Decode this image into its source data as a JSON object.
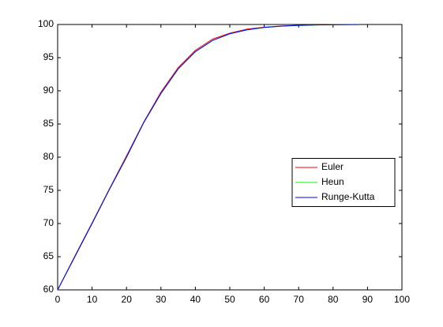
{
  "chart_data": {
    "type": "line",
    "x": [
      0,
      5,
      10,
      15,
      20,
      25,
      30,
      35,
      40,
      45,
      50,
      55,
      60,
      65,
      70,
      75,
      80,
      85,
      87.5
    ],
    "series": [
      {
        "name": "Euler",
        "color": "#ff0000",
        "values": [
          60,
          65.1,
          70.1,
          75.2,
          80.2,
          85.3,
          89.8,
          93.5,
          96.1,
          97.8,
          98.7,
          99.3,
          99.6,
          99.78,
          99.88,
          99.94,
          99.97,
          99.99,
          100
        ]
      },
      {
        "name": "Heun",
        "color": "#00ff00",
        "values": [
          60,
          65,
          70,
          75.1,
          80,
          85.2,
          89.6,
          93.3,
          95.9,
          97.6,
          98.6,
          99.2,
          99.55,
          99.75,
          99.86,
          99.93,
          99.96,
          99.98,
          99.99
        ]
      },
      {
        "name": "Runge-Kutta",
        "color": "#0000ff",
        "values": [
          60,
          65,
          70,
          75.1,
          80,
          85.2,
          89.6,
          93.3,
          95.9,
          97.6,
          98.6,
          99.2,
          99.55,
          99.75,
          99.86,
          99.93,
          99.96,
          99.98,
          99.99
        ]
      }
    ],
    "xlim": [
      0,
      100
    ],
    "xticks": [
      0,
      10,
      20,
      30,
      40,
      50,
      60,
      70,
      80,
      90,
      100
    ],
    "ylim": [
      60,
      100
    ],
    "yticks": [
      60,
      65,
      70,
      75,
      80,
      85,
      90,
      95,
      100
    ],
    "grid": false,
    "legend_position": "east"
  }
}
